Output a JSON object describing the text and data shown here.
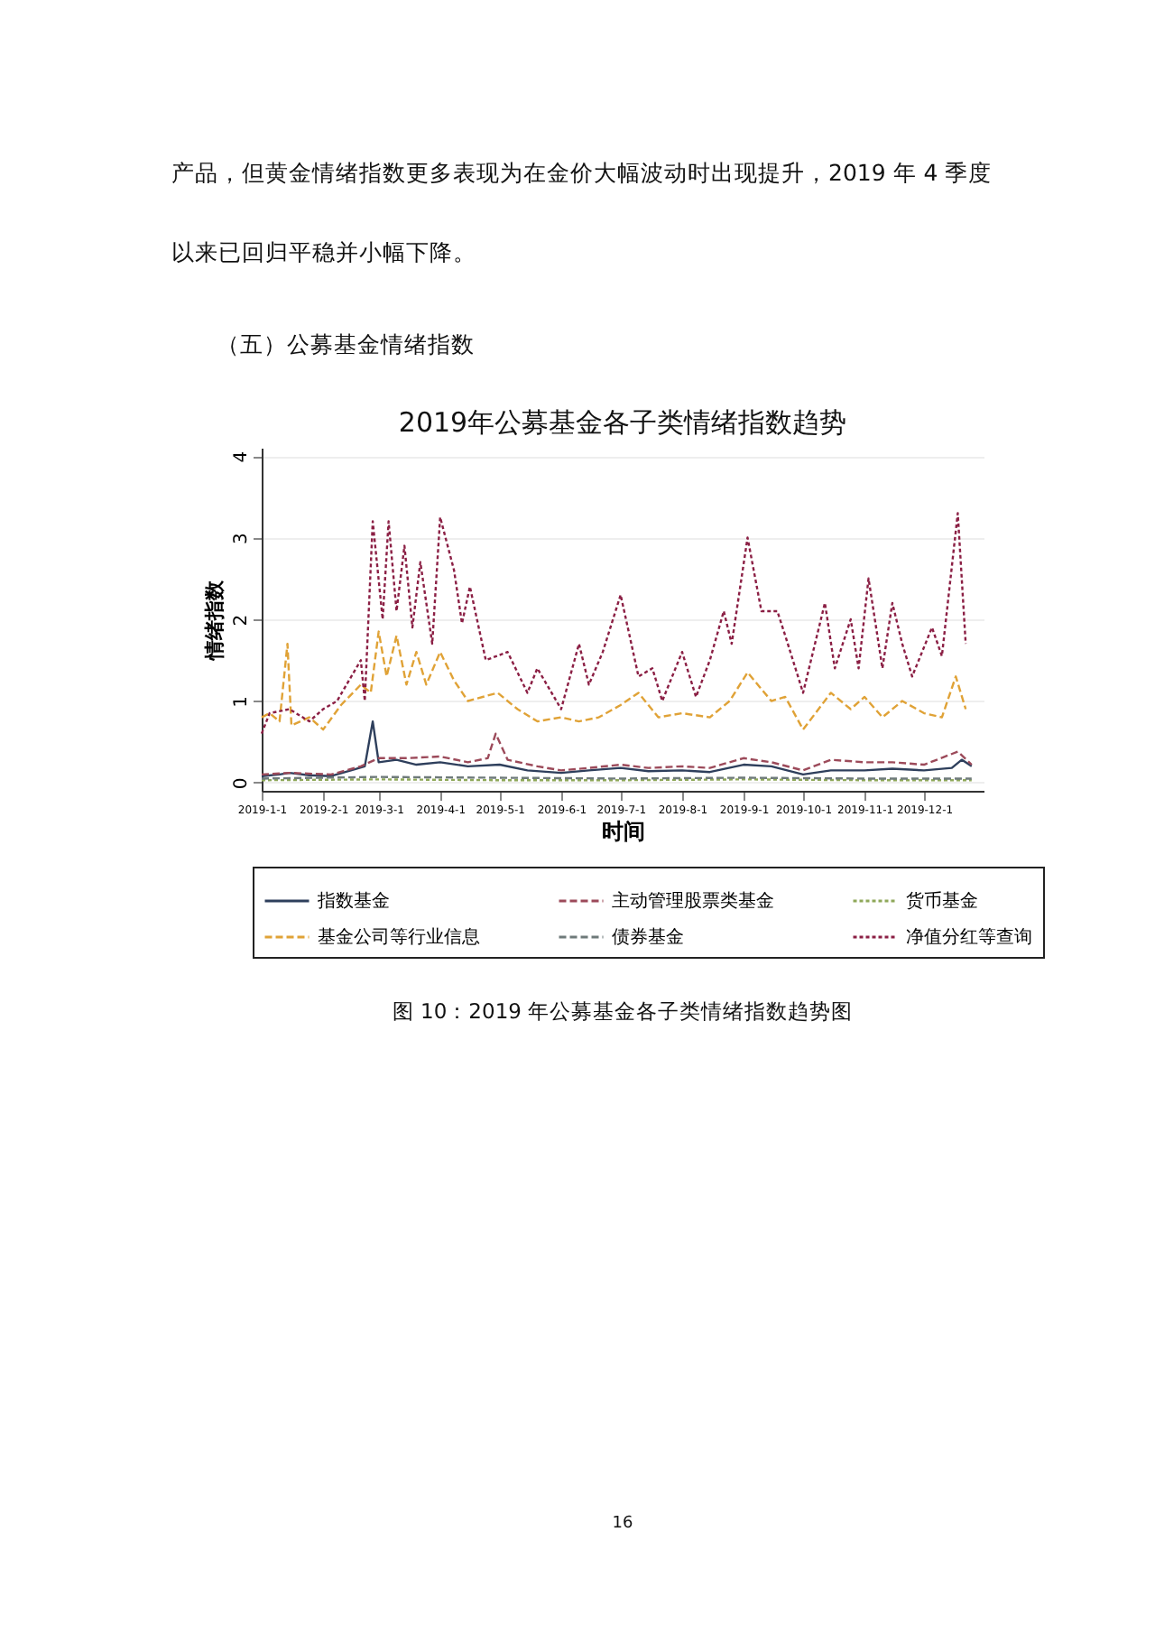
{
  "chart_data": {
    "type": "line",
    "title": "2019年公募基金各子类情绪指数趋势",
    "xlabel": "时间",
    "ylabel": "情绪指数",
    "annotations": [
      "产品，但黄金情绪指数更多表现为在金价大幅波动时出现提升，2019 年 4 季度",
      "以来已回归平稳并小幅下降。",
      "（五）公募基金情绪指数",
      "图 10：2019 年公募基金各子类情绪指数趋势图",
      "16"
    ],
    "xlim": [
      "2019-01-01",
      "2019-12-31"
    ],
    "xticks": [
      {
        "value": "2019-01-01",
        "label": "2019-1-1"
      },
      {
        "value": "2019-02-01",
        "label": "2019-2-1"
      },
      {
        "value": "2019-03-01",
        "label": "2019-3-1"
      },
      {
        "value": "2019-04-01",
        "label": "2019-4-1"
      },
      {
        "value": "2019-05-01",
        "label": "2019-5-1"
      },
      {
        "value": "2019-06-01",
        "label": "2019-6-1"
      },
      {
        "value": "2019-07-01",
        "label": "2019-7-1"
      },
      {
        "value": "2019-08-01",
        "label": "2019-8-1"
      },
      {
        "value": "2019-09-01",
        "label": "2019-9-1"
      },
      {
        "value": "2019-10-01",
        "label": "2019-10-1"
      },
      {
        "value": "2019-11-01",
        "label": "2019-11-1"
      },
      {
        "value": "2019-12-01",
        "label": "2019-12-1"
      }
    ],
    "ylim": [
      -0.1,
      4.1
    ],
    "yticks": [
      0,
      1,
      2,
      3,
      4
    ],
    "grid": "y",
    "legend": "bottom",
    "marker": "none",
    "series": [
      {
        "name": "指数基金",
        "color": "#2e3f5c",
        "line_style": "solid",
        "x": [
          "2019-01-01",
          "2019-01-10",
          "2019-01-15",
          "2019-01-25",
          "2019-02-05",
          "2019-02-15",
          "2019-02-22",
          "2019-02-26",
          "2019-03-01",
          "2019-03-10",
          "2019-03-20",
          "2019-04-01",
          "2019-04-15",
          "2019-05-01",
          "2019-05-15",
          "2019-06-01",
          "2019-06-15",
          "2019-07-01",
          "2019-07-15",
          "2019-08-01",
          "2019-08-15",
          "2019-09-01",
          "2019-09-15",
          "2019-10-01",
          "2019-10-15",
          "2019-11-01",
          "2019-11-15",
          "2019-12-01",
          "2019-12-15",
          "2019-12-20",
          "2019-12-25"
        ],
        "values": [
          0.08,
          0.1,
          0.12,
          0.09,
          0.08,
          0.15,
          0.2,
          0.75,
          0.25,
          0.28,
          0.22,
          0.25,
          0.2,
          0.22,
          0.15,
          0.12,
          0.15,
          0.18,
          0.14,
          0.15,
          0.13,
          0.22,
          0.2,
          0.1,
          0.15,
          0.15,
          0.17,
          0.15,
          0.18,
          0.28,
          0.2
        ]
      },
      {
        "name": "主动管理股票类基金",
        "color": "#9c4a5a",
        "line_style": "dashed",
        "x": [
          "2019-01-01",
          "2019-01-15",
          "2019-02-05",
          "2019-02-20",
          "2019-03-01",
          "2019-03-15",
          "2019-04-01",
          "2019-04-15",
          "2019-04-25",
          "2019-04-29",
          "2019-05-05",
          "2019-05-20",
          "2019-06-01",
          "2019-06-15",
          "2019-07-01",
          "2019-07-15",
          "2019-08-01",
          "2019-08-15",
          "2019-09-01",
          "2019-09-15",
          "2019-10-01",
          "2019-10-15",
          "2019-11-01",
          "2019-11-15",
          "2019-12-01",
          "2019-12-18",
          "2019-12-25"
        ],
        "values": [
          0.1,
          0.12,
          0.1,
          0.2,
          0.3,
          0.3,
          0.32,
          0.25,
          0.3,
          0.6,
          0.28,
          0.2,
          0.15,
          0.18,
          0.22,
          0.18,
          0.2,
          0.18,
          0.3,
          0.25,
          0.15,
          0.28,
          0.25,
          0.25,
          0.22,
          0.38,
          0.22
        ]
      },
      {
        "name": "货币基金",
        "color": "#8fa85a",
        "line_style": "dotted",
        "x": [
          "2019-01-01",
          "2019-03-01",
          "2019-05-01",
          "2019-07-01",
          "2019-09-01",
          "2019-11-01",
          "2019-12-25"
        ],
        "values": [
          0.03,
          0.04,
          0.03,
          0.03,
          0.04,
          0.03,
          0.03
        ]
      },
      {
        "name": "基金公司等行业信息",
        "color": "#e0a236",
        "line_style": "dashed",
        "x": [
          "2019-01-01",
          "2019-01-05",
          "2019-01-10",
          "2019-01-14",
          "2019-01-16",
          "2019-01-25",
          "2019-02-01",
          "2019-02-10",
          "2019-02-20",
          "2019-02-25",
          "2019-03-01",
          "2019-03-05",
          "2019-03-10",
          "2019-03-15",
          "2019-03-20",
          "2019-03-25",
          "2019-04-01",
          "2019-04-08",
          "2019-04-15",
          "2019-04-30",
          "2019-05-10",
          "2019-05-20",
          "2019-06-01",
          "2019-06-10",
          "2019-06-20",
          "2019-07-01",
          "2019-07-10",
          "2019-07-20",
          "2019-08-01",
          "2019-08-15",
          "2019-08-25",
          "2019-09-03",
          "2019-09-15",
          "2019-09-22",
          "2019-10-01",
          "2019-10-15",
          "2019-10-25",
          "2019-11-01",
          "2019-11-10",
          "2019-11-20",
          "2019-12-01",
          "2019-12-10",
          "2019-12-17",
          "2019-12-22"
        ],
        "values": [
          0.8,
          0.85,
          0.75,
          1.7,
          0.7,
          0.8,
          0.65,
          0.95,
          1.2,
          1.1,
          1.85,
          1.3,
          1.8,
          1.2,
          1.6,
          1.2,
          1.6,
          1.25,
          1.0,
          1.1,
          0.9,
          0.75,
          0.8,
          0.75,
          0.8,
          0.95,
          1.1,
          0.8,
          0.85,
          0.8,
          1.0,
          1.35,
          1.0,
          1.05,
          0.65,
          1.1,
          0.9,
          1.05,
          0.8,
          1.0,
          0.85,
          0.8,
          1.3,
          0.9
        ]
      },
      {
        "name": "债券基金",
        "color": "#6e7a7a",
        "line_style": "dashed",
        "x": [
          "2019-01-01",
          "2019-03-01",
          "2019-05-01",
          "2019-07-01",
          "2019-09-01",
          "2019-11-01",
          "2019-12-25"
        ],
        "values": [
          0.05,
          0.07,
          0.06,
          0.05,
          0.06,
          0.05,
          0.05
        ]
      },
      {
        "name": "净值分红等查询",
        "color": "#8b1f44",
        "line_style": "dotted",
        "x": [
          "2019-01-01",
          "2019-01-05",
          "2019-01-15",
          "2019-01-25",
          "2019-02-01",
          "2019-02-08",
          "2019-02-20",
          "2019-02-22",
          "2019-02-26",
          "2019-03-03",
          "2019-03-06",
          "2019-03-10",
          "2019-03-14",
          "2019-03-18",
          "2019-03-22",
          "2019-03-28",
          "2019-04-01",
          "2019-04-08",
          "2019-04-12",
          "2019-04-16",
          "2019-04-24",
          "2019-05-05",
          "2019-05-15",
          "2019-05-20",
          "2019-06-01",
          "2019-06-10",
          "2019-06-15",
          "2019-06-22",
          "2019-07-01",
          "2019-07-10",
          "2019-07-17",
          "2019-07-22",
          "2019-08-01",
          "2019-08-08",
          "2019-08-15",
          "2019-08-22",
          "2019-08-26",
          "2019-09-03",
          "2019-09-10",
          "2019-09-18",
          "2019-09-22",
          "2019-10-01",
          "2019-10-12",
          "2019-10-17",
          "2019-10-25",
          "2019-10-29",
          "2019-11-03",
          "2019-11-10",
          "2019-11-15",
          "2019-11-20",
          "2019-11-25",
          "2019-12-05",
          "2019-12-10",
          "2019-12-18",
          "2019-12-22"
        ],
        "values": [
          0.6,
          0.85,
          0.9,
          0.75,
          0.9,
          1.0,
          1.5,
          1.0,
          3.2,
          2.0,
          3.2,
          2.1,
          2.9,
          1.9,
          2.7,
          1.7,
          3.25,
          2.6,
          1.95,
          2.4,
          1.5,
          1.6,
          1.1,
          1.4,
          0.9,
          1.7,
          1.2,
          1.6,
          2.3,
          1.3,
          1.4,
          1.0,
          1.6,
          1.05,
          1.5,
          2.1,
          1.7,
          3.0,
          2.1,
          2.1,
          1.8,
          1.1,
          2.2,
          1.4,
          2.0,
          1.4,
          2.5,
          1.4,
          2.2,
          1.7,
          1.3,
          1.9,
          1.55,
          3.3,
          1.7
        ]
      }
    ]
  }
}
